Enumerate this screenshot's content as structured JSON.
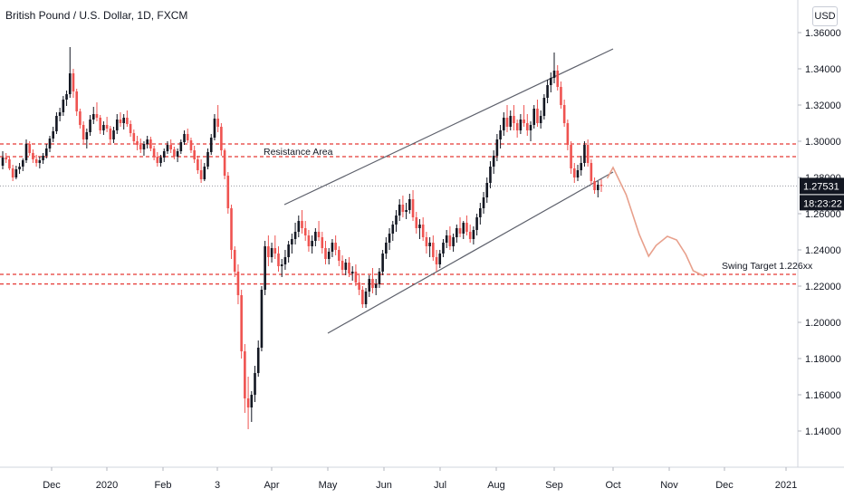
{
  "header": {
    "title": "British Pound / U.S. Dollar, 1D, FXCM",
    "currency": "USD"
  },
  "chart_data": {
    "type": "candlestick",
    "ylim": [
      1.125,
      1.365
    ],
    "y_ticks": [
      "1.36000",
      "1.34000",
      "1.32000",
      "1.30000",
      "1.28000",
      "1.26000",
      "1.24000",
      "1.22000",
      "1.20000",
      "1.18000",
      "1.16000",
      "1.14000"
    ],
    "x_ticks": [
      "Dec",
      "2020",
      "Feb",
      "3",
      "Apr",
      "May",
      "Jun",
      "Jul",
      "Aug",
      "Sep",
      "Oct",
      "Nov",
      "Dec",
      "2021"
    ],
    "current_price": "1.27531",
    "countdown": "18:23:22",
    "annotations": [
      {
        "label": "Resistance Area",
        "y_values": [
          1.2985,
          1.2915
        ]
      },
      {
        "label": "Swing Target 1.226xx",
        "y_values": [
          1.2265,
          1.2212
        ]
      }
    ],
    "channel": [
      {
        "name": "upper",
        "from": [
          "Apr",
          1.265
        ],
        "to": [
          "Oct",
          1.351
        ]
      },
      {
        "name": "lower",
        "from": [
          "May",
          1.194
        ],
        "to": [
          "Oct",
          1.283
        ]
      }
    ],
    "projection": [
      [
        "Sep 28",
        1.2795
      ],
      [
        "Oct 1",
        1.2855
      ],
      [
        "Oct 8",
        1.2705
      ],
      [
        "Oct 15",
        1.2485
      ],
      [
        "Oct 20",
        1.2365
      ],
      [
        "Oct 24",
        1.2425
      ],
      [
        "Oct 30",
        1.2475
      ],
      [
        "Nov 5",
        1.2455
      ],
      [
        "Nov 10",
        1.2375
      ],
      [
        "Nov 14",
        1.2285
      ],
      [
        "Nov 20",
        1.2255
      ]
    ],
    "candles": [
      [
        1.2865,
        1.2945,
        1.2845,
        1.291
      ],
      [
        1.291,
        1.2935,
        1.288,
        1.29
      ],
      [
        1.29,
        1.2915,
        1.284,
        1.285
      ],
      [
        1.285,
        1.287,
        1.278,
        1.28
      ],
      [
        1.28,
        1.2865,
        1.279,
        1.2845
      ],
      [
        1.2845,
        1.288,
        1.282,
        1.286
      ],
      [
        1.286,
        1.2905,
        1.2835,
        1.2895
      ],
      [
        1.2895,
        1.301,
        1.288,
        1.2985
      ],
      [
        1.2985,
        1.3,
        1.292,
        1.2935
      ],
      [
        1.2935,
        1.2955,
        1.288,
        1.29
      ],
      [
        1.29,
        1.2925,
        1.286,
        1.288
      ],
      [
        1.288,
        1.2915,
        1.285,
        1.2895
      ],
      [
        1.2895,
        1.2935,
        1.2875,
        1.292
      ],
      [
        1.292,
        1.2985,
        1.2905,
        1.296
      ],
      [
        1.296,
        1.303,
        1.294,
        1.3015
      ],
      [
        1.3015,
        1.308,
        1.2995,
        1.3055
      ],
      [
        1.3055,
        1.316,
        1.304,
        1.314
      ],
      [
        1.314,
        1.3185,
        1.311,
        1.316
      ],
      [
        1.316,
        1.325,
        1.314,
        1.323
      ],
      [
        1.323,
        1.328,
        1.3195,
        1.326
      ],
      [
        1.326,
        1.352,
        1.324,
        1.3375
      ],
      [
        1.3375,
        1.34,
        1.324,
        1.3275
      ],
      [
        1.3275,
        1.329,
        1.314,
        1.3165
      ],
      [
        1.3165,
        1.318,
        1.307,
        1.309
      ],
      [
        1.309,
        1.311,
        1.299,
        1.301
      ],
      [
        1.301,
        1.307,
        1.296,
        1.305
      ],
      [
        1.305,
        1.3145,
        1.303,
        1.312
      ],
      [
        1.312,
        1.319,
        1.3095,
        1.315
      ],
      [
        1.315,
        1.3215,
        1.311,
        1.313
      ],
      [
        1.313,
        1.3145,
        1.304,
        1.306
      ],
      [
        1.306,
        1.311,
        1.3035,
        1.309
      ],
      [
        1.309,
        1.3135,
        1.305,
        1.307
      ],
      [
        1.307,
        1.3085,
        1.299,
        1.301
      ],
      [
        1.301,
        1.308,
        1.299,
        1.306
      ],
      [
        1.306,
        1.315,
        1.304,
        1.312
      ],
      [
        1.312,
        1.316,
        1.308,
        1.31
      ],
      [
        1.31,
        1.315,
        1.3065,
        1.313
      ],
      [
        1.313,
        1.317,
        1.308,
        1.3095
      ],
      [
        1.3095,
        1.3115,
        1.3025,
        1.3045
      ],
      [
        1.3045,
        1.3065,
        1.2985,
        1.3
      ],
      [
        1.3,
        1.303,
        1.295,
        1.298
      ],
      [
        1.298,
        1.3015,
        1.2935,
        1.2955
      ],
      [
        1.2955,
        1.3,
        1.292,
        1.2985
      ],
      [
        1.2985,
        1.303,
        1.296,
        1.301
      ],
      [
        1.301,
        1.3025,
        1.2945,
        1.296
      ],
      [
        1.296,
        1.2975,
        1.2895,
        1.2915
      ],
      [
        1.2915,
        1.294,
        1.286,
        1.288
      ],
      [
        1.288,
        1.2925,
        1.286,
        1.291
      ],
      [
        1.291,
        1.296,
        1.2885,
        1.2945
      ],
      [
        1.2945,
        1.3,
        1.293,
        1.298
      ],
      [
        1.298,
        1.301,
        1.2935,
        1.2955
      ],
      [
        1.2955,
        1.297,
        1.29,
        1.2915
      ],
      [
        1.2915,
        1.296,
        1.2885,
        1.2945
      ],
      [
        1.2945,
        1.301,
        1.293,
        1.2995
      ],
      [
        1.2995,
        1.306,
        1.298,
        1.304
      ],
      [
        1.304,
        1.307,
        1.299,
        1.3005
      ],
      [
        1.3005,
        1.302,
        1.2935,
        1.295
      ],
      [
        1.295,
        1.2975,
        1.288,
        1.29
      ],
      [
        1.29,
        1.292,
        1.282,
        1.284
      ],
      [
        1.284,
        1.29,
        1.277,
        1.279
      ],
      [
        1.279,
        1.288,
        1.278,
        1.286
      ],
      [
        1.286,
        1.296,
        1.2845,
        1.294
      ],
      [
        1.294,
        1.304,
        1.2925,
        1.302
      ],
      [
        1.302,
        1.315,
        1.3005,
        1.3125
      ],
      [
        1.3125,
        1.32,
        1.305,
        1.308
      ],
      [
        1.308,
        1.31,
        1.292,
        1.295
      ],
      [
        1.295,
        1.296,
        1.279,
        1.281
      ],
      [
        1.281,
        1.283,
        1.26,
        1.263
      ],
      [
        1.263,
        1.265,
        1.235,
        1.24
      ],
      [
        1.24,
        1.242,
        1.225,
        1.228
      ],
      [
        1.228,
        1.232,
        1.21,
        1.215
      ],
      [
        1.215,
        1.218,
        1.18,
        1.184
      ],
      [
        1.184,
        1.188,
        1.15,
        1.158
      ],
      [
        1.158,
        1.17,
        1.141,
        1.153
      ],
      [
        1.153,
        1.162,
        1.145,
        1.16
      ],
      [
        1.16,
        1.176,
        1.156,
        1.172
      ],
      [
        1.172,
        1.19,
        1.17,
        1.186
      ],
      [
        1.186,
        1.22,
        1.184,
        1.218
      ],
      [
        1.218,
        1.245,
        1.215,
        1.242
      ],
      [
        1.242,
        1.248,
        1.231,
        1.236
      ],
      [
        1.236,
        1.244,
        1.233,
        1.241
      ],
      [
        1.241,
        1.248,
        1.235,
        1.238
      ],
      [
        1.238,
        1.242,
        1.228,
        1.231
      ],
      [
        1.231,
        1.235,
        1.225,
        1.232
      ],
      [
        1.232,
        1.24,
        1.229,
        1.236
      ],
      [
        1.236,
        1.245,
        1.233,
        1.243
      ],
      [
        1.243,
        1.249,
        1.238,
        1.246
      ],
      [
        1.246,
        1.255,
        1.243,
        1.25
      ],
      [
        1.25,
        1.259,
        1.247,
        1.256
      ],
      [
        1.256,
        1.262,
        1.249,
        1.252
      ],
      [
        1.252,
        1.256,
        1.245,
        1.248
      ],
      [
        1.248,
        1.251,
        1.239,
        1.242
      ],
      [
        1.242,
        1.248,
        1.238,
        1.245
      ],
      [
        1.245,
        1.252,
        1.242,
        1.25
      ],
      [
        1.25,
        1.256,
        1.245,
        1.247
      ],
      [
        1.247,
        1.25,
        1.238,
        1.241
      ],
      [
        1.241,
        1.245,
        1.232,
        1.235
      ],
      [
        1.235,
        1.241,
        1.232,
        1.239
      ],
      [
        1.239,
        1.246,
        1.236,
        1.244
      ],
      [
        1.244,
        1.248,
        1.237,
        1.24
      ],
      [
        1.24,
        1.242,
        1.231,
        1.234
      ],
      [
        1.234,
        1.237,
        1.226,
        1.229
      ],
      [
        1.229,
        1.235,
        1.226,
        1.233
      ],
      [
        1.233,
        1.236,
        1.225,
        1.227
      ],
      [
        1.227,
        1.231,
        1.223,
        1.228
      ],
      [
        1.228,
        1.232,
        1.22,
        1.222
      ],
      [
        1.222,
        1.227,
        1.215,
        1.218
      ],
      [
        1.218,
        1.22,
        1.208,
        1.21
      ],
      [
        1.21,
        1.219,
        1.208,
        1.217
      ],
      [
        1.217,
        1.226,
        1.214,
        1.224
      ],
      [
        1.224,
        1.23,
        1.216,
        1.219
      ],
      [
        1.219,
        1.224,
        1.215,
        1.221
      ],
      [
        1.221,
        1.23,
        1.219,
        1.228
      ],
      [
        1.228,
        1.24,
        1.226,
        1.238
      ],
      [
        1.238,
        1.247,
        1.235,
        1.244
      ],
      [
        1.244,
        1.252,
        1.24,
        1.249
      ],
      [
        1.249,
        1.256,
        1.245,
        1.254
      ],
      [
        1.254,
        1.262,
        1.25,
        1.259
      ],
      [
        1.259,
        1.268,
        1.256,
        1.265
      ],
      [
        1.265,
        1.27,
        1.258,
        1.261
      ],
      [
        1.261,
        1.266,
        1.257,
        1.262
      ],
      [
        1.262,
        1.271,
        1.26,
        1.268
      ],
      [
        1.268,
        1.273,
        1.256,
        1.258
      ],
      [
        1.258,
        1.261,
        1.249,
        1.252
      ],
      [
        1.252,
        1.257,
        1.246,
        1.254
      ],
      [
        1.254,
        1.258,
        1.245,
        1.247
      ],
      [
        1.247,
        1.25,
        1.238,
        1.242
      ],
      [
        1.242,
        1.247,
        1.236,
        1.244
      ],
      [
        1.244,
        1.248,
        1.234,
        1.236
      ],
      [
        1.236,
        1.24,
        1.228,
        1.232
      ],
      [
        1.232,
        1.24,
        1.23,
        1.238
      ],
      [
        1.238,
        1.246,
        1.236,
        1.244
      ],
      [
        1.244,
        1.251,
        1.241,
        1.248
      ],
      [
        1.248,
        1.253,
        1.24,
        1.242
      ],
      [
        1.242,
        1.249,
        1.239,
        1.247
      ],
      [
        1.247,
        1.254,
        1.244,
        1.252
      ],
      [
        1.252,
        1.258,
        1.247,
        1.249
      ],
      [
        1.249,
        1.256,
        1.246,
        1.255
      ],
      [
        1.255,
        1.259,
        1.248,
        1.25
      ],
      [
        1.25,
        1.254,
        1.244,
        1.246
      ],
      [
        1.246,
        1.253,
        1.243,
        1.251
      ],
      [
        1.251,
        1.26,
        1.248,
        1.258
      ],
      [
        1.258,
        1.266,
        1.254,
        1.263
      ],
      [
        1.263,
        1.272,
        1.26,
        1.269
      ],
      [
        1.269,
        1.28,
        1.266,
        1.277
      ],
      [
        1.277,
        1.289,
        1.274,
        1.286
      ],
      [
        1.286,
        1.295,
        1.282,
        1.292
      ],
      [
        1.292,
        1.304,
        1.289,
        1.301
      ],
      [
        1.301,
        1.309,
        1.296,
        1.306
      ],
      [
        1.306,
        1.316,
        1.303,
        1.313
      ],
      [
        1.313,
        1.32,
        1.305,
        1.308
      ],
      [
        1.308,
        1.317,
        1.306,
        1.314
      ],
      [
        1.314,
        1.32,
        1.306,
        1.31
      ],
      [
        1.31,
        1.312,
        1.302,
        1.306
      ],
      [
        1.306,
        1.315,
        1.304,
        1.312
      ],
      [
        1.312,
        1.32,
        1.308,
        1.31
      ],
      [
        1.31,
        1.315,
        1.303,
        1.306
      ],
      [
        1.306,
        1.311,
        1.3,
        1.309
      ],
      [
        1.309,
        1.32,
        1.307,
        1.318
      ],
      [
        1.318,
        1.323,
        1.308,
        1.31
      ],
      [
        1.31,
        1.317,
        1.307,
        1.314
      ],
      [
        1.314,
        1.326,
        1.312,
        1.324
      ],
      [
        1.324,
        1.334,
        1.321,
        1.331
      ],
      [
        1.331,
        1.338,
        1.327,
        1.335
      ],
      [
        1.335,
        1.349,
        1.332,
        1.339
      ],
      [
        1.339,
        1.342,
        1.328,
        1.33
      ],
      [
        1.33,
        1.333,
        1.318,
        1.32
      ],
      [
        1.32,
        1.323,
        1.308,
        1.31
      ],
      [
        1.31,
        1.312,
        1.295,
        1.298
      ],
      [
        1.298,
        1.3,
        1.282,
        1.285
      ],
      [
        1.285,
        1.288,
        1.277,
        1.28
      ],
      [
        1.28,
        1.287,
        1.278,
        1.284
      ],
      [
        1.284,
        1.292,
        1.281,
        1.288
      ],
      [
        1.288,
        1.3,
        1.286,
        1.298
      ],
      [
        1.298,
        1.301,
        1.286,
        1.288
      ],
      [
        1.288,
        1.29,
        1.276,
        1.278
      ],
      [
        1.278,
        1.28,
        1.271,
        1.273
      ],
      [
        1.273,
        1.278,
        1.269,
        1.276
      ],
      [
        1.276,
        1.279,
        1.272,
        1.2753
      ]
    ]
  }
}
